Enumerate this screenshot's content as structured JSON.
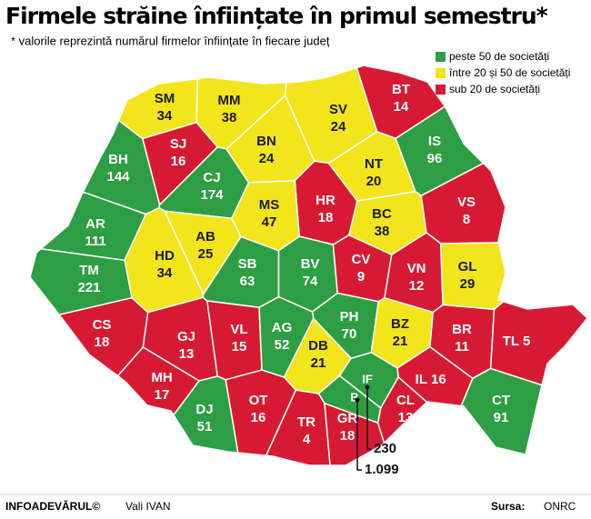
{
  "header": {
    "title": "Firmele străine înființate în primul semestru*",
    "subtitle": "* valorile reprezintă numărul firmelor înființate în fiecare județ"
  },
  "legend": [
    {
      "label": "peste 50 de societăți",
      "color": "#2e9e44"
    },
    {
      "label": "între 20 și 50 de societăți",
      "color": "#f2e51b"
    },
    {
      "label": "sub 20 de societăți",
      "color": "#d71a33"
    }
  ],
  "counties": [
    {
      "code": "SM",
      "value": 34,
      "color": "#f2e51b"
    },
    {
      "code": "MM",
      "value": 38,
      "color": "#f2e51b"
    },
    {
      "code": "SV",
      "value": 24,
      "color": "#f2e51b"
    },
    {
      "code": "BT",
      "value": 14,
      "color": "#d71a33"
    },
    {
      "code": "SJ",
      "value": 16,
      "color": "#d71a33"
    },
    {
      "code": "BH",
      "value": 144,
      "color": "#2e9e44"
    },
    {
      "code": "CJ",
      "value": 174,
      "color": "#2e9e44"
    },
    {
      "code": "BN",
      "value": 24,
      "color": "#f2e51b"
    },
    {
      "code": "IS",
      "value": 96,
      "color": "#2e9e44"
    },
    {
      "code": "NT",
      "value": 20,
      "color": "#f2e51b"
    },
    {
      "code": "HR",
      "value": 18,
      "color": "#d71a33"
    },
    {
      "code": "MS",
      "value": 47,
      "color": "#f2e51b"
    },
    {
      "code": "BC",
      "value": 38,
      "color": "#f2e51b"
    },
    {
      "code": "VS",
      "value": 8,
      "color": "#d71a33"
    },
    {
      "code": "AR",
      "value": 111,
      "color": "#2e9e44"
    },
    {
      "code": "AB",
      "value": 25,
      "color": "#f2e51b"
    },
    {
      "code": "HD",
      "value": 34,
      "color": "#f2e51b"
    },
    {
      "code": "SB",
      "value": 63,
      "color": "#2e9e44"
    },
    {
      "code": "BV",
      "value": 74,
      "color": "#2e9e44"
    },
    {
      "code": "CV",
      "value": 9,
      "color": "#d71a33"
    },
    {
      "code": "VN",
      "value": 12,
      "color": "#d71a33"
    },
    {
      "code": "GL",
      "value": 29,
      "color": "#f2e51b"
    },
    {
      "code": "TM",
      "value": 221,
      "color": "#2e9e44"
    },
    {
      "code": "CS",
      "value": 18,
      "color": "#d71a33"
    },
    {
      "code": "GJ",
      "value": 13,
      "color": "#d71a33"
    },
    {
      "code": "VL",
      "value": 15,
      "color": "#d71a33"
    },
    {
      "code": "AG",
      "value": 52,
      "color": "#2e9e44"
    },
    {
      "code": "PH",
      "value": 70,
      "color": "#2e9e44"
    },
    {
      "code": "BZ",
      "value": 21,
      "color": "#f2e51b"
    },
    {
      "code": "BR",
      "value": 11,
      "color": "#d71a33"
    },
    {
      "code": "TL",
      "value": 5,
      "color": "#d71a33"
    },
    {
      "code": "MH",
      "value": 17,
      "color": "#d71a33"
    },
    {
      "code": "DB",
      "value": 21,
      "color": "#f2e51b"
    },
    {
      "code": "IF",
      "value": 230,
      "color": "#2e9e44"
    },
    {
      "code": "B",
      "value": 1099,
      "value_label": "1.099",
      "color": "#2e9e44"
    },
    {
      "code": "DJ",
      "value": 51,
      "color": "#2e9e44"
    },
    {
      "code": "OT",
      "value": 16,
      "color": "#d71a33"
    },
    {
      "code": "TR",
      "value": 4,
      "color": "#d71a33"
    },
    {
      "code": "GR",
      "value": 18,
      "color": "#d71a33"
    },
    {
      "code": "CL",
      "value": 13,
      "color": "#d71a33"
    },
    {
      "code": "IL",
      "value": 16,
      "color": "#d71a33"
    },
    {
      "code": "CT",
      "value": 91,
      "color": "#2e9e44"
    }
  ],
  "footer": {
    "brand": "INFOADEVĂRUL©",
    "author": "Vali IVAN",
    "source_label": "Sursa:",
    "source": "ONRC"
  }
}
